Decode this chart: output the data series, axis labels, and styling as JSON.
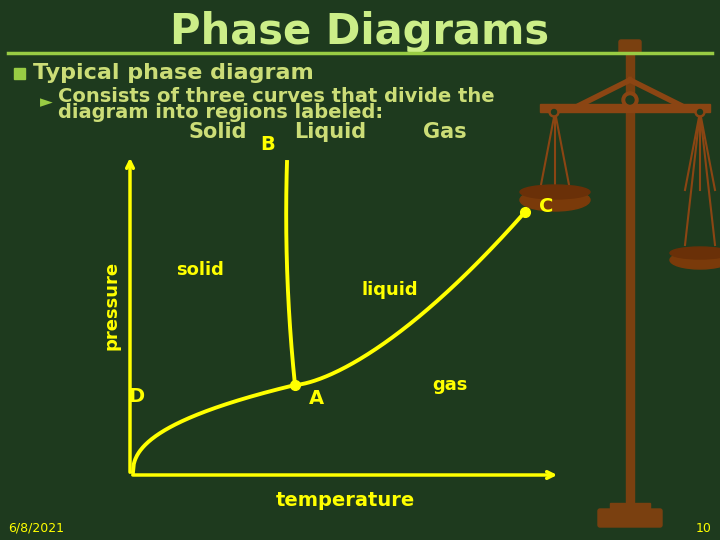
{
  "bg_color": "#1e3a1e",
  "title": "Phase Diagrams",
  "title_color": "#ccee88",
  "header_line_color": "#99cc44",
  "bullet_text": "Typical phase diagram",
  "sub_bullet_line1": "Consists of three curves that divide the",
  "sub_bullet_line2": "diagram into regions labeled:",
  "solid_label": "Solid",
  "liquid_label": "Liquid",
  "gas_label": "Gas",
  "text_color": "#ccdd77",
  "yellow_color": "#ffff00",
  "axis_color": "#ffff00",
  "curve_color": "#ffff00",
  "dot_color": "#ffff00",
  "label_solid": "solid",
  "label_liquid": "liquid",
  "label_gas": "gas",
  "label_pressure": "pressure",
  "label_temperature": "temperature",
  "point_A": "A",
  "point_B": "B",
  "point_C": "C",
  "point_D": "D",
  "date_text": "6/8/2021",
  "page_num": "10",
  "scale_pole_color": "#7a4010",
  "scale_beam_color": "#8b4513",
  "scale_pan_color": "#7a3a0a"
}
